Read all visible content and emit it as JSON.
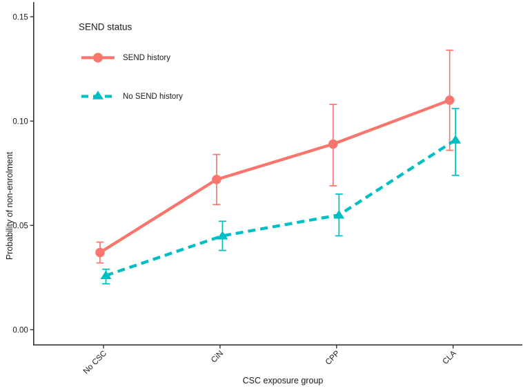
{
  "chart_data": {
    "type": "line",
    "title": "",
    "xlabel": "CSC exposure group",
    "ylabel": "Probability of non-enrolment",
    "categories": [
      "No CSC",
      "CiN",
      "CPP",
      "CLA"
    ],
    "y_ticks": [
      "0.00",
      "0.05",
      "0.10",
      "0.15"
    ],
    "ylim": [
      0.0,
      0.157
    ],
    "grid": "off",
    "legend": {
      "title": "SEND status",
      "position": "top-left-inside"
    },
    "error_bars": true,
    "series": [
      {
        "name": "SEND history",
        "color": "#F8766D",
        "marker": "circle",
        "line": "solid",
        "values": [
          0.037,
          0.072,
          0.089,
          0.11
        ],
        "ci_low": [
          0.032,
          0.06,
          0.069,
          0.086
        ],
        "ci_high": [
          0.042,
          0.084,
          0.108,
          0.134
        ]
      },
      {
        "name": "No SEND history",
        "color": "#00BFC4",
        "marker": "triangle",
        "line": "dashed",
        "values": [
          0.026,
          0.045,
          0.055,
          0.091
        ],
        "ci_low": [
          0.022,
          0.038,
          0.045,
          0.074
        ],
        "ci_high": [
          0.029,
          0.052,
          0.065,
          0.106
        ]
      }
    ],
    "axis_color": "#333333",
    "text_color": "#1a1a1a"
  }
}
